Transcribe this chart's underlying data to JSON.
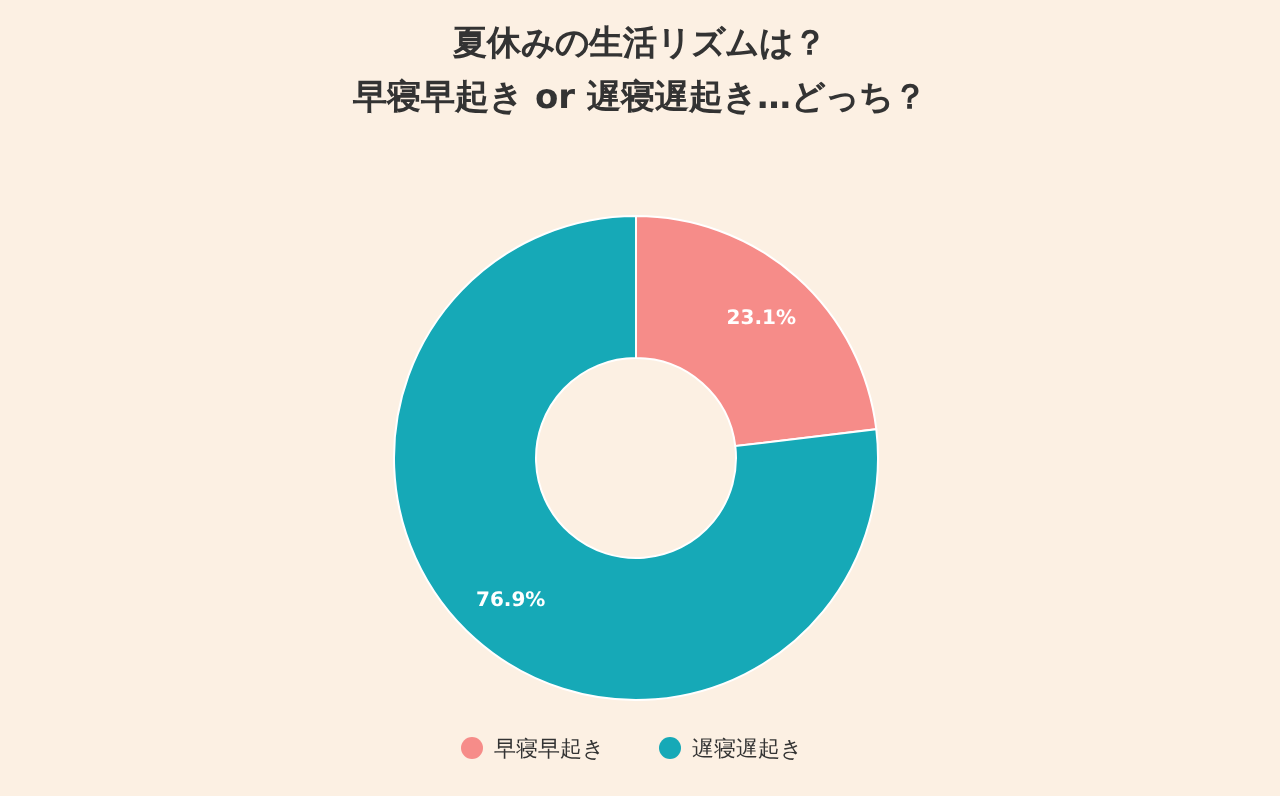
{
  "chart_data": {
    "type": "donut",
    "title": "夏休みの生活リズムは？",
    "subtitle": "早寝早起き or 遅寝遅起き…どっち？",
    "categories": [
      "早寝早起き",
      "遅寝遅起き"
    ],
    "values": [
      23.1,
      76.9
    ],
    "value_labels": [
      "23.1%",
      "76.9%"
    ],
    "colors": [
      "#f68c89",
      "#16a9b7"
    ],
    "legend": "bottom"
  }
}
